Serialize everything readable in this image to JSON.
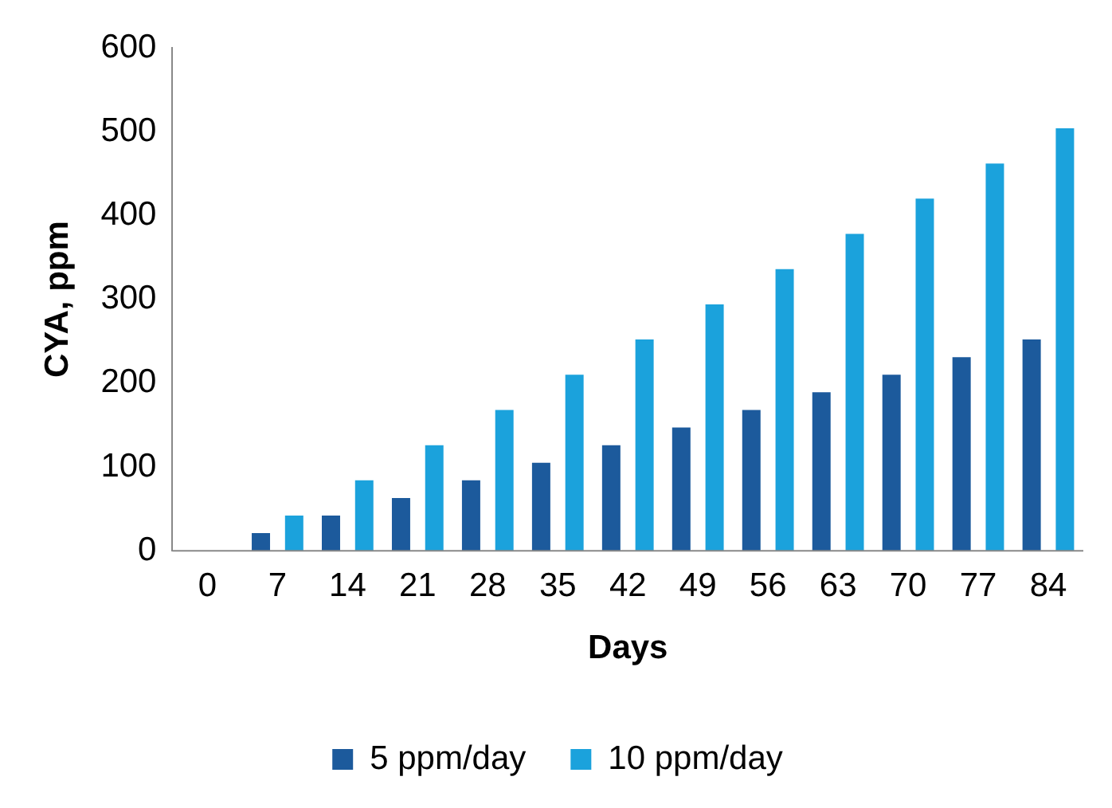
{
  "chart_data": {
    "type": "bar",
    "xlabel": "Days",
    "ylabel": "CYA, ppm",
    "categories": [
      "0",
      "7",
      "14",
      "21",
      "28",
      "35",
      "42",
      "49",
      "56",
      "63",
      "70",
      "77",
      "84"
    ],
    "series": [
      {
        "name": "5 ppm/day",
        "color": "#1c5a9c",
        "values": [
          0,
          21,
          42,
          63,
          84,
          105,
          126,
          147,
          168,
          189,
          210,
          231,
          252
        ]
      },
      {
        "name": "10 ppm/day",
        "color": "#1ba2dc",
        "values": [
          0,
          42,
          84,
          126,
          168,
          210,
          252,
          294,
          336,
          378,
          420,
          462,
          504
        ]
      }
    ],
    "ylim": [
      0,
      600
    ],
    "yticks": [
      0,
      100,
      200,
      300,
      400,
      500,
      600
    ],
    "grid": false,
    "legend": "bottom"
  }
}
